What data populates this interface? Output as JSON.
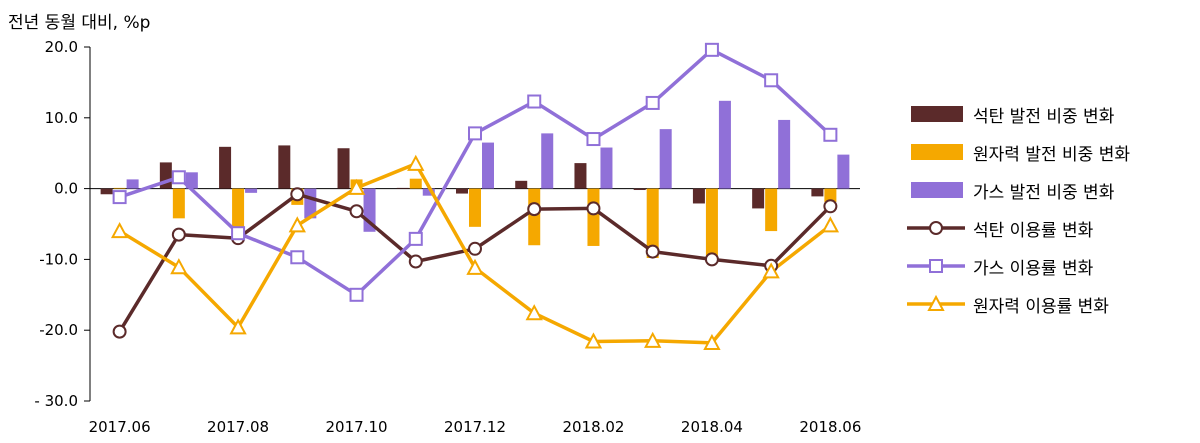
{
  "chart_data": {
    "type": "bar+line",
    "ylabel": "전년 동월 대비, %p",
    "ylim": [
      -30,
      20
    ],
    "yticks": [
      20,
      10,
      0,
      -10,
      -20,
      -30
    ],
    "ytick_labels": [
      "20.0",
      "10.0",
      "0.0",
      "-10.0",
      "-20.0",
      "- 30.0"
    ],
    "x": [
      "2017.06",
      "2017.07",
      "2017.08",
      "2017.09",
      "2017.10",
      "2017.11",
      "2017.12",
      "2018.01",
      "2018.02",
      "2018.03",
      "2018.04",
      "2018.05",
      "2018.06"
    ],
    "xtick_labels": [
      "2017.06",
      "2017.08",
      "2017.10",
      "2017.12",
      "2018.02",
      "2018.04",
      "2018.06"
    ],
    "bar_series": [
      {
        "name": "석탄 발전 비중 변화",
        "color": "#5b2a2a",
        "values": [
          -0.8,
          3.7,
          5.9,
          6.1,
          5.7,
          0.1,
          -0.7,
          1.1,
          3.6,
          -0.2,
          -2.1,
          -2.8,
          -1.1
        ]
      },
      {
        "name": "원자력 발전 비중 변화",
        "color": "#f5a800",
        "values": [
          0.1,
          -4.2,
          -5.5,
          -2.3,
          1.3,
          1.4,
          -5.4,
          -8.0,
          -8.1,
          -9.8,
          -9.8,
          -6.0,
          -1.9
        ]
      },
      {
        "name": "가스 발전 비중 변화",
        "color": "#9070d8",
        "values": [
          1.3,
          2.3,
          -0.6,
          -4.2,
          -6.1,
          -1.0,
          6.5,
          7.8,
          5.8,
          8.4,
          12.4,
          9.7,
          4.8
        ]
      }
    ],
    "line_series": [
      {
        "name": "석탄 이용률 변화",
        "color": "#5b2a2a",
        "marker": "circle",
        "values": [
          -20.2,
          -6.5,
          -7.0,
          -0.8,
          -3.2,
          -10.3,
          -8.5,
          -2.9,
          -2.8,
          -8.9,
          -10.0,
          -10.9,
          -2.5
        ]
      },
      {
        "name": "가스 이용률 변화",
        "color": "#9070d8",
        "marker": "square",
        "values": [
          -1.2,
          1.6,
          -6.3,
          -9.7,
          -15.0,
          -7.1,
          7.8,
          12.3,
          7.0,
          12.1,
          19.6,
          15.3,
          7.6
        ]
      },
      {
        "name": "원자력 이용률 변화",
        "color": "#f5a800",
        "marker": "triangle",
        "values": [
          -6.0,
          -11.1,
          -19.6,
          -5.2,
          0.1,
          3.5,
          -11.2,
          -17.6,
          -21.6,
          -21.5,
          -21.8,
          -11.7,
          -5.2
        ]
      }
    ],
    "grid": false,
    "legend_position": "right"
  }
}
